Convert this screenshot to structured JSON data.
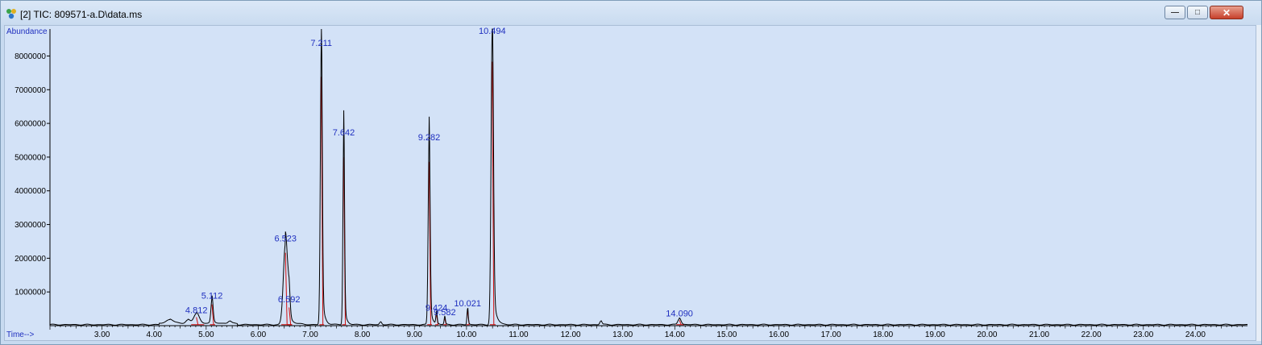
{
  "window": {
    "title": "[2] TIC: 809571-a.D\\data.ms"
  },
  "chart_data": {
    "type": "line",
    "ylabel": "Abundance",
    "xlabel": "Time-->",
    "xlim": [
      2.0,
      25.0
    ],
    "ylim": [
      0,
      8800000
    ],
    "x_ticks": [
      "3.00",
      "4.00",
      "5.00",
      "6.00",
      "7.00",
      "8.00",
      "9.00",
      "10.00",
      "11.00",
      "12.00",
      "13.00",
      "14.00",
      "15.00",
      "16.00",
      "17.00",
      "18.00",
      "19.00",
      "20.00",
      "21.00",
      "22.00",
      "23.00",
      "24.00"
    ],
    "y_ticks": [
      "1000000",
      "2000000",
      "3000000",
      "4000000",
      "5000000",
      "6000000",
      "7000000",
      "8000000"
    ],
    "peaks": [
      {
        "rt": 4.812,
        "label": "4.812",
        "height": 280000,
        "width": 0.05
      },
      {
        "rt": 5.112,
        "label": "5.112",
        "height": 700000,
        "width": 0.02
      },
      {
        "rt": 6.523,
        "label": "6.523",
        "height": 2400000,
        "width": 0.04
      },
      {
        "rt": 6.592,
        "label": "6.592",
        "height": 600000,
        "width": 0.02
      },
      {
        "rt": 7.211,
        "label": "7.211",
        "height": 8200000,
        "width": 0.018
      },
      {
        "rt": 7.642,
        "label": "7.642",
        "height": 5550000,
        "width": 0.015
      },
      {
        "rt": 9.282,
        "label": "9.282",
        "height": 5400000,
        "width": 0.018
      },
      {
        "rt": 9.424,
        "label": "9.424",
        "height": 350000,
        "width": 0.012
      },
      {
        "rt": 9.582,
        "label": "9.582",
        "height": 220000,
        "width": 0.012
      },
      {
        "rt": 10.021,
        "label": "10.021",
        "height": 480000,
        "width": 0.012
      },
      {
        "rt": 10.494,
        "label": "10.494",
        "height": 8700000,
        "width": 0.022
      },
      {
        "rt": 14.09,
        "label": "14.090",
        "height": 180000,
        "width": 0.03
      }
    ],
    "minor_peaks": [
      {
        "rt": 4.3,
        "height": 120000,
        "width": 0.06
      },
      {
        "rt": 4.65,
        "height": 100000,
        "width": 0.04
      },
      {
        "rt": 5.45,
        "height": 60000,
        "width": 0.03
      },
      {
        "rt": 8.35,
        "height": 80000,
        "width": 0.02
      },
      {
        "rt": 12.58,
        "height": 110000,
        "width": 0.02
      }
    ],
    "colors": {
      "trace": "#000000",
      "peak_label": "#1f2fbf",
      "integration": "#d01010",
      "axis_label": "#1f2fbf"
    }
  }
}
